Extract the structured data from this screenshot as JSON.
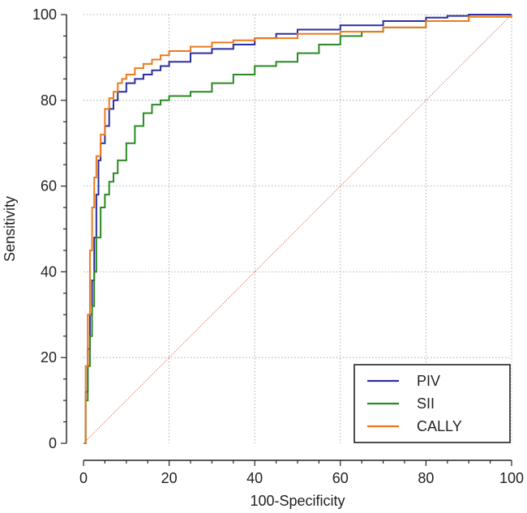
{
  "chart_data": {
    "type": "line",
    "xlabel": "100-Specificity",
    "ylabel": "Sensitivity",
    "xlim": [
      0,
      100
    ],
    "ylim": [
      0,
      100
    ],
    "xticks": [
      "0",
      "20",
      "40",
      "60",
      "80",
      "100"
    ],
    "yticks": [
      "0",
      "20",
      "40",
      "60",
      "80",
      "100"
    ],
    "minor_ticks_step": 5,
    "grid": true,
    "legend_position": "bottom-right",
    "reference_line": {
      "x": [
        0,
        100
      ],
      "y": [
        0,
        100
      ],
      "color": "#e07070"
    },
    "series": [
      {
        "name": "PIV",
        "color": "#2b2fa0",
        "x": [
          0,
          0.5,
          1,
          1.5,
          2,
          2.5,
          3,
          3.5,
          4,
          5,
          6,
          7,
          8,
          10,
          12,
          14,
          16,
          18,
          20,
          25,
          30,
          35,
          40,
          45,
          50,
          60,
          70,
          80,
          85,
          90,
          100
        ],
        "y": [
          0,
          12,
          22,
          30,
          38,
          48,
          58,
          66,
          70,
          74,
          78,
          80,
          82,
          84,
          85,
          86,
          87,
          88,
          89,
          91,
          92,
          93,
          94.5,
          95.5,
          96.5,
          97.5,
          98.5,
          99.3,
          99.7,
          100,
          100
        ]
      },
      {
        "name": "SII",
        "color": "#2a8a23",
        "x": [
          0,
          0.5,
          1,
          1.5,
          2,
          2.5,
          3,
          4,
          5,
          6,
          7,
          8,
          10,
          12,
          14,
          16,
          18,
          20,
          25,
          30,
          35,
          40,
          45,
          50,
          55,
          60,
          65,
          70,
          80,
          90,
          100
        ],
        "y": [
          0,
          10,
          18,
          25,
          32,
          40,
          48,
          55,
          58,
          61,
          63,
          66,
          70,
          74,
          77,
          79,
          80,
          81,
          82,
          84,
          86,
          88,
          89,
          91,
          93,
          95,
          96,
          97,
          98.5,
          99.5,
          100
        ]
      },
      {
        "name": "CALLY",
        "color": "#ec7a1c",
        "x": [
          0,
          0.5,
          1,
          1.5,
          2,
          2.5,
          3,
          4,
          5,
          6,
          7,
          8,
          9,
          10,
          12,
          14,
          16,
          18,
          20,
          25,
          30,
          35,
          40,
          50,
          60,
          70,
          80,
          90,
          100
        ],
        "y": [
          0,
          18,
          30,
          45,
          55,
          62,
          67,
          72,
          78,
          80.5,
          82,
          84,
          85,
          86,
          87.5,
          88.5,
          89.5,
          90.5,
          91.5,
          92.5,
          93.5,
          94,
          94.5,
          95.5,
          96,
          97,
          98.5,
          99.5,
          100
        ]
      }
    ]
  }
}
